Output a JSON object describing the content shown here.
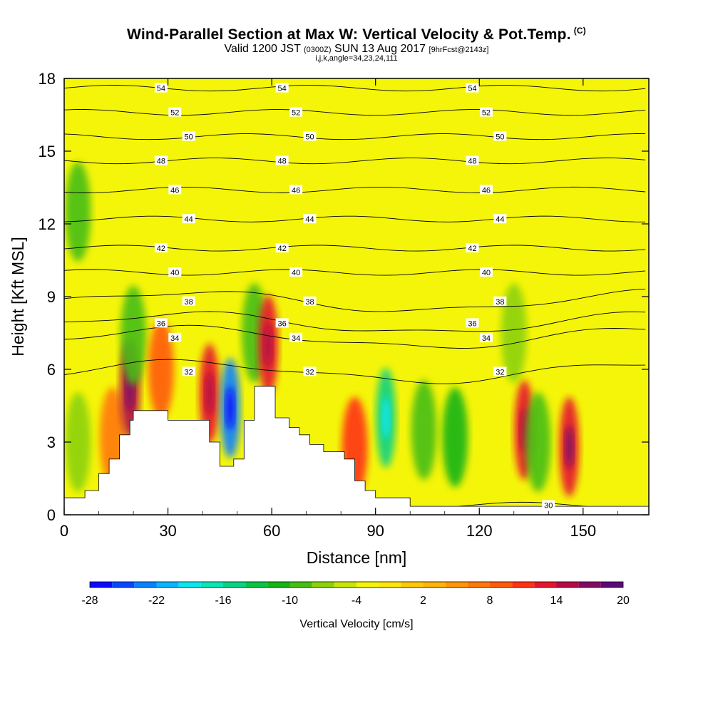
{
  "header": {
    "title": "Wind-Parallel Section at Max W: Vertical Velocity & Pot.Temp.",
    "copyright": "(C)",
    "valid_prefix": "Valid 1200 JST",
    "valid_zulu": "(0300Z)",
    "valid_date": "SUN 13 Aug 2017",
    "forecast": "[9hrFcst@2143z]",
    "grid_info": "i,j,k,angle=34,23,24,111"
  },
  "colors": {
    "plot_background": "#f5f50a",
    "terrain": "#ffffff",
    "contour_line": "#000000"
  },
  "chart_data": {
    "type": "heatmap",
    "xlabel": "Distance [nm]",
    "ylabel": "Height [Kft MSL]",
    "xlim": [
      0,
      169
    ],
    "ylim": [
      0,
      18
    ],
    "x_ticks": [
      0,
      30,
      60,
      90,
      120,
      150
    ],
    "y_ticks": [
      0,
      3,
      6,
      9,
      12,
      15,
      18
    ],
    "colorbar": {
      "label": "Vertical Velocity [cm/s]",
      "tick_labels": [
        "-28",
        "-22",
        "-16",
        "-10",
        "-4",
        "2",
        "8",
        "14",
        "20"
      ],
      "colors": [
        "#0a0aff",
        "#0a46ff",
        "#0a82ff",
        "#0ab4ff",
        "#0ae6f0",
        "#0ae6b4",
        "#0ad282",
        "#0ac346",
        "#14b414",
        "#46be14",
        "#8cd20a",
        "#c8e60a",
        "#f5f50a",
        "#ffe60a",
        "#ffc80a",
        "#ffb40a",
        "#ff960a",
        "#ff780a",
        "#ff5a0a",
        "#ff3214",
        "#e6142d",
        "#b40a46",
        "#820a64",
        "#5a0a78"
      ]
    },
    "theta_contours": [
      {
        "label": "54",
        "height": 17.6
      },
      {
        "label": "52",
        "height": 16.6
      },
      {
        "label": "50",
        "height": 15.6
      },
      {
        "label": "48",
        "height": 14.6
      },
      {
        "label": "46",
        "height": 13.4
      },
      {
        "label": "44",
        "height": 12.2
      },
      {
        "label": "42",
        "height": 11.0
      },
      {
        "label": "40",
        "height": 10.0
      },
      {
        "label": "38",
        "height": 8.8
      },
      {
        "label": "36",
        "height": 7.9
      },
      {
        "label": "34",
        "height": 7.3
      },
      {
        "label": "32",
        "height": 5.9
      },
      {
        "label": "30",
        "height": 0.4
      }
    ],
    "vertical_velocity_cells": [
      {
        "x": 4,
        "z": 12.5,
        "value": -8
      },
      {
        "x": 4,
        "z": 3.0,
        "value": -6
      },
      {
        "x": 14,
        "z": 3.2,
        "value": 10
      },
      {
        "x": 19,
        "z": 5.2,
        "value": 18
      },
      {
        "x": 20,
        "z": 7.4,
        "value": -9
      },
      {
        "x": 28,
        "z": 6.0,
        "value": 11
      },
      {
        "x": 42,
        "z": 5.0,
        "value": 15
      },
      {
        "x": 48,
        "z": 4.4,
        "value": -24
      },
      {
        "x": 55,
        "z": 7.5,
        "value": -8
      },
      {
        "x": 59,
        "z": 7.0,
        "value": 16
      },
      {
        "x": 84,
        "z": 2.8,
        "value": 13
      },
      {
        "x": 93,
        "z": 4.0,
        "value": -16
      },
      {
        "x": 104,
        "z": 3.5,
        "value": -9
      },
      {
        "x": 113,
        "z": 3.2,
        "value": -11
      },
      {
        "x": 133,
        "z": 3.5,
        "value": 15
      },
      {
        "x": 137,
        "z": 3.0,
        "value": -9
      },
      {
        "x": 146,
        "z": 2.8,
        "value": 17
      },
      {
        "x": 130,
        "z": 7.5,
        "value": -7
      }
    ],
    "terrain_profile": [
      [
        0,
        0.7
      ],
      [
        6,
        0.7
      ],
      [
        6,
        1.0
      ],
      [
        10,
        1.0
      ],
      [
        10,
        1.7
      ],
      [
        13,
        1.7
      ],
      [
        13,
        2.3
      ],
      [
        16,
        2.3
      ],
      [
        16,
        3.3
      ],
      [
        19,
        3.3
      ],
      [
        19,
        3.9
      ],
      [
        20,
        3.9
      ],
      [
        20,
        4.3
      ],
      [
        30,
        4.3
      ],
      [
        30,
        3.9
      ],
      [
        42,
        3.9
      ],
      [
        42,
        3.0
      ],
      [
        45,
        3.0
      ],
      [
        45,
        2.0
      ],
      [
        48,
        2.0
      ],
      [
        48,
        2.0
      ],
      [
        49,
        2.0
      ],
      [
        49,
        2.3
      ],
      [
        52,
        2.3
      ],
      [
        52,
        3.9
      ],
      [
        55,
        3.9
      ],
      [
        55,
        5.3
      ],
      [
        61,
        5.3
      ],
      [
        61,
        4.0
      ],
      [
        65,
        4.0
      ],
      [
        65,
        3.6
      ],
      [
        68,
        3.6
      ],
      [
        68,
        3.3
      ],
      [
        71,
        3.3
      ],
      [
        71,
        2.9
      ],
      [
        75,
        2.9
      ],
      [
        75,
        2.6
      ],
      [
        81,
        2.6
      ],
      [
        81,
        2.3
      ],
      [
        84,
        2.3
      ],
      [
        84,
        1.4
      ],
      [
        87,
        1.4
      ],
      [
        87,
        1.0
      ],
      [
        90,
        1.0
      ],
      [
        90,
        0.7
      ],
      [
        100,
        0.7
      ],
      [
        100,
        0.35
      ],
      [
        169,
        0.35
      ]
    ]
  }
}
